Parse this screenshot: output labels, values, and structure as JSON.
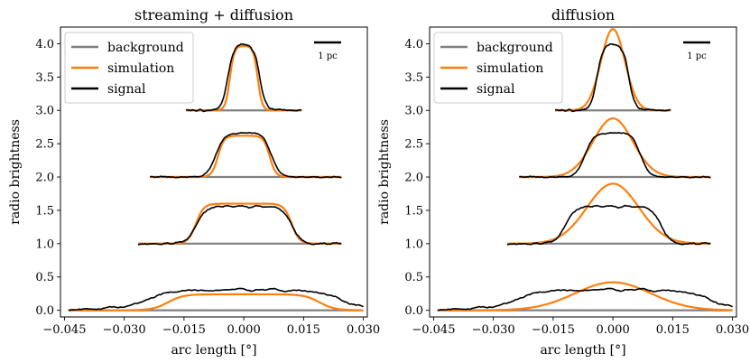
{
  "chart_data": [
    {
      "type": "line",
      "title": "streaming + diffusion",
      "xlabel": "arc length [°]",
      "ylabel": "radio brightness",
      "xlim": [
        -0.046,
        0.031
      ],
      "ylim": [
        -0.1,
        4.25
      ],
      "xticks": [
        -0.045,
        -0.03,
        -0.015,
        0.0,
        0.015,
        0.03
      ],
      "xtick_labels": [
        "−0.045",
        "−0.030",
        "−0.015",
        "0.000",
        "0.015",
        "0.030"
      ],
      "yticks": [
        0.0,
        0.5,
        1.0,
        1.5,
        2.0,
        2.5,
        3.0,
        3.5,
        4.0
      ],
      "ytick_labels": [
        "0.0",
        "0.5",
        "1.0",
        "1.5",
        "2.0",
        "2.5",
        "3.0",
        "3.5",
        "4.0"
      ],
      "legend": [
        "background",
        "simulation",
        "signal"
      ],
      "legend_position": "top-left",
      "scale_bar_label": "1 pc",
      "colors": {
        "background": "#808080",
        "simulation": "#ff7f0e",
        "signal": "#000000"
      },
      "profiles": [
        {
          "offset": 3.0,
          "x_range": [
            -0.0145,
            0.0145
          ],
          "sim_type": "flat",
          "sim_amp": 0.97,
          "sim_halfwidth": 0.0035,
          "sim_edge": 0.0016,
          "sig_amp": 1.0,
          "sig_halfwidth": 0.004,
          "sig_edge": 0.0022,
          "noise": 0.03,
          "seed": 3
        },
        {
          "offset": 2.0,
          "x_range": [
            -0.0235,
            0.0245
          ],
          "sim_type": "flat",
          "sim_amp": 0.62,
          "sim_halfwidth": 0.0065,
          "sim_edge": 0.0022,
          "sig_amp": 0.66,
          "sig_halfwidth": 0.007,
          "sig_edge": 0.003,
          "noise": 0.025,
          "seed": 7
        },
        {
          "offset": 1.0,
          "x_range": [
            -0.0265,
            0.0245
          ],
          "sim_type": "flat",
          "sim_amp": 0.6,
          "sim_halfwidth": 0.012,
          "sim_edge": 0.0028,
          "sig_amp": 0.56,
          "sig_halfwidth": 0.012,
          "sig_edge": 0.0035,
          "noise": 0.03,
          "seed": 11
        },
        {
          "offset": 0.0,
          "x_range": [
            -0.044,
            0.03
          ],
          "sim_type": "flat",
          "sim_amp": 0.24,
          "sim_halfwidth": 0.019,
          "sim_edge": 0.0055,
          "sig_amp": 0.26,
          "sig_halfwidth": 0.024,
          "sig_edge": 0.008,
          "noise": 0.035,
          "base_noise": 0.08,
          "seed": 19
        }
      ]
    },
    {
      "type": "line",
      "title": "diffusion",
      "xlabel": "arc length [°]",
      "ylabel": "radio brightness",
      "xlim": [
        -0.046,
        0.031
      ],
      "ylim": [
        -0.1,
        4.25
      ],
      "xticks": [
        -0.045,
        -0.03,
        -0.015,
        0.0,
        0.015,
        0.03
      ],
      "xtick_labels": [
        "−0.045",
        "−0.030",
        "−0.015",
        "0.000",
        "0.015",
        "0.030"
      ],
      "yticks": [
        0.0,
        0.5,
        1.0,
        1.5,
        2.0,
        2.5,
        3.0,
        3.5,
        4.0
      ],
      "ytick_labels": [
        "0.0",
        "0.5",
        "1.0",
        "1.5",
        "2.0",
        "2.5",
        "3.0",
        "3.5",
        "4.0"
      ],
      "legend": [
        "background",
        "simulation",
        "signal"
      ],
      "legend_position": "top-left",
      "scale_bar_label": "1 pc",
      "colors": {
        "background": "#808080",
        "simulation": "#ff7f0e",
        "signal": "#000000"
      },
      "profiles": [
        {
          "offset": 3.0,
          "x_range": [
            -0.0145,
            0.0145
          ],
          "sim_type": "gauss",
          "sim_amp": 1.22,
          "sim_sigma": 0.003,
          "sig_amp": 1.0,
          "sig_halfwidth": 0.004,
          "sig_edge": 0.0022,
          "noise": 0.03,
          "seed": 3
        },
        {
          "offset": 2.0,
          "x_range": [
            -0.0235,
            0.0245
          ],
          "sim_type": "gauss",
          "sim_amp": 0.88,
          "sim_sigma": 0.005,
          "sig_amp": 0.66,
          "sig_halfwidth": 0.007,
          "sig_edge": 0.003,
          "noise": 0.025,
          "seed": 7
        },
        {
          "offset": 1.0,
          "x_range": [
            -0.0265,
            0.0245
          ],
          "sim_type": "gauss",
          "sim_amp": 0.9,
          "sim_sigma": 0.0065,
          "sig_amp": 0.56,
          "sig_halfwidth": 0.012,
          "sig_edge": 0.0035,
          "noise": 0.03,
          "seed": 11
        },
        {
          "offset": 0.0,
          "x_range": [
            -0.044,
            0.03
          ],
          "sim_type": "gauss",
          "sim_amp": 0.42,
          "sim_sigma": 0.0095,
          "sig_amp": 0.26,
          "sig_halfwidth": 0.024,
          "sig_edge": 0.008,
          "noise": 0.035,
          "base_noise": 0.08,
          "seed": 19
        }
      ]
    }
  ]
}
